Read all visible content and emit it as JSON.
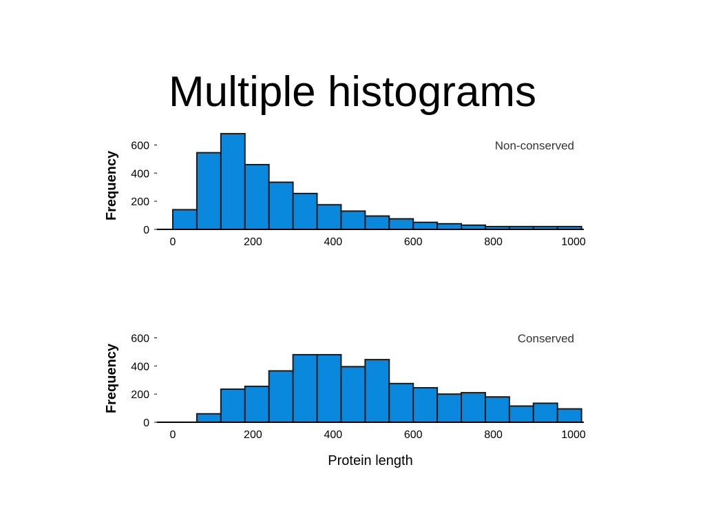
{
  "slide": {
    "title": "Multiple histograms"
  },
  "colors": {
    "bar_fill": "#0A88DE",
    "bar_stroke": "#1A1A1A",
    "axis": "#000000",
    "annotation": "#333333"
  },
  "chart_data": [
    {
      "type": "bar",
      "annotation": "Non-conserved",
      "ylabel": "Frequency",
      "xlabel": "",
      "bin_edges": [
        0,
        60,
        120,
        180,
        240,
        300,
        360,
        420,
        480,
        540,
        600,
        660,
        720,
        780,
        840,
        900,
        960,
        1020
      ],
      "values": [
        140,
        545,
        680,
        460,
        335,
        255,
        175,
        130,
        95,
        75,
        50,
        40,
        30,
        20,
        20,
        20,
        20
      ],
      "xlim": [
        -40,
        1020
      ],
      "ylim": [
        0,
        700
      ],
      "xticks": [
        0,
        200,
        400,
        600,
        800,
        1000
      ],
      "yticks": [
        0,
        200,
        400,
        600
      ],
      "xtick_labels": [
        "0",
        "200",
        "400",
        "600",
        "800",
        "1000"
      ],
      "ytick_labels": [
        "0",
        "200",
        "400",
        "600"
      ],
      "legend": "top-right",
      "grid": false
    },
    {
      "type": "bar",
      "annotation": "Conserved",
      "ylabel": "Frequency",
      "xlabel": "Protein length",
      "bin_edges": [
        0,
        60,
        120,
        180,
        240,
        300,
        360,
        420,
        480,
        540,
        600,
        660,
        720,
        780,
        840,
        900,
        960,
        1020
      ],
      "values": [
        0,
        60,
        235,
        255,
        365,
        480,
        480,
        395,
        445,
        275,
        245,
        200,
        210,
        180,
        115,
        135,
        95
      ],
      "xlim": [
        -40,
        1020
      ],
      "ylim": [
        0,
        700
      ],
      "xticks": [
        0,
        200,
        400,
        600,
        800,
        1000
      ],
      "yticks": [
        0,
        200,
        400,
        600
      ],
      "xtick_labels": [
        "0",
        "200",
        "400",
        "600",
        "800",
        "1000"
      ],
      "ytick_labels": [
        "0",
        "200",
        "400",
        "600"
      ],
      "legend": "top-right",
      "grid": false
    }
  ]
}
